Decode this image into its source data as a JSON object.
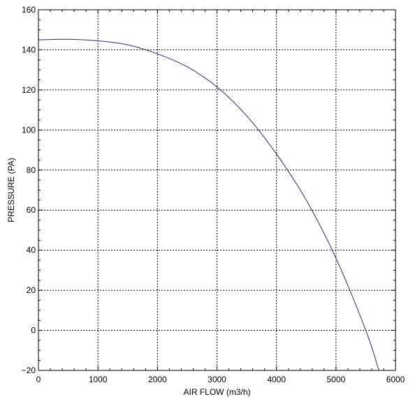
{
  "chart_data": {
    "type": "line",
    "title": "",
    "xlabel": "AIR FLOW (m3/h)",
    "ylabel": "PRESSURE (PA)",
    "xlim": [
      0,
      6000
    ],
    "ylim": [
      -20,
      160
    ],
    "xticks": [
      0,
      1000,
      2000,
      3000,
      4000,
      5000,
      6000
    ],
    "yticks": [
      -20,
      0,
      20,
      40,
      60,
      80,
      100,
      120,
      140,
      160
    ],
    "xtick_labels": [
      "0",
      "1000",
      "2000",
      "3000",
      "4000",
      "5000",
      "6000"
    ],
    "ytick_labels": [
      "−20",
      "0",
      "20",
      "40",
      "60",
      "80",
      "100",
      "120",
      "140",
      "160"
    ],
    "grid": true,
    "grid_style": "dotted",
    "legend": "none",
    "series": [
      {
        "color": "#2b2b7a",
        "x": [
          0,
          500,
          1000,
          1500,
          2000,
          2500,
          3000,
          3500,
          4000,
          4500,
          5000,
          5500,
          5720
        ],
        "y": [
          145,
          145.3,
          144.5,
          142.5,
          138,
          131.5,
          121.5,
          107,
          88,
          65,
          36,
          0,
          -20
        ]
      }
    ]
  }
}
